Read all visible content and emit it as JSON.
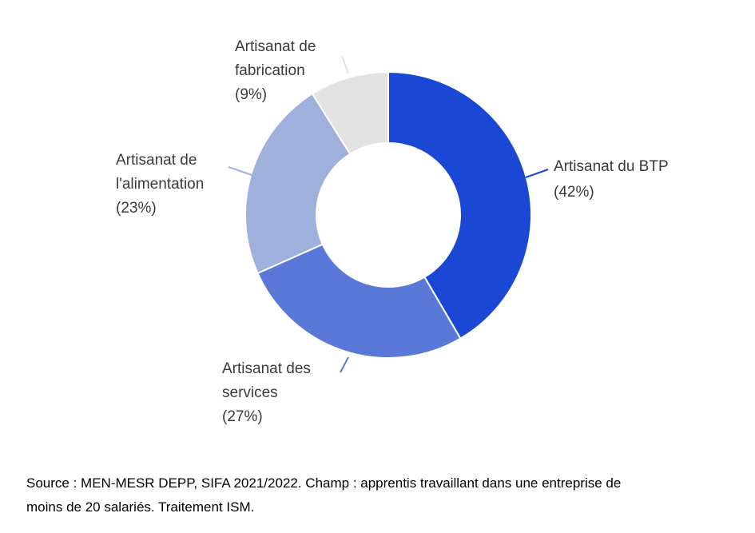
{
  "chart_data": {
    "type": "pie",
    "donut": true,
    "slices": [
      {
        "label": "Artisanat du BTP",
        "value": 42,
        "value_label": "(42%)",
        "color": "#1a47d3"
      },
      {
        "label": "Artisanat des services",
        "value": 27,
        "value_label": "(27%)",
        "color": "#5a78d8"
      },
      {
        "label": "Artisanat de l'alimentation",
        "value": 23,
        "value_label": "(23%)",
        "color": "#9fb0dd"
      },
      {
        "label": "Artisanat de fabrication",
        "value": 9,
        "value_label": "(9%)",
        "color": "#e2e2e2"
      }
    ]
  },
  "labels": {
    "btp": [
      "Artisanat du BTP",
      "(42%)"
    ],
    "services": [
      "Artisanat des",
      "services",
      "(27%)"
    ],
    "alimentation": [
      "Artisanat de",
      "l'alimentation",
      "(23%)"
    ],
    "fabrication": [
      "Artisanat de",
      "fabrication",
      "(9%)"
    ]
  },
  "source": {
    "line1": "Source : MEN-MESR DEPP, SIFA 2021/2022. Champ : apprentis travaillant dans une entreprise de",
    "line2": "moins de 20 salariés. Traitement ISM."
  }
}
